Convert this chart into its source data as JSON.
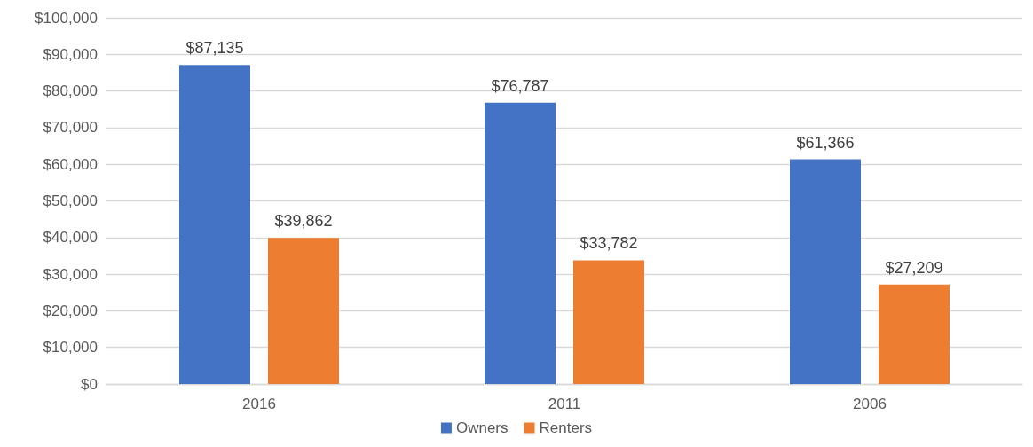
{
  "chart_data": {
    "type": "bar",
    "categories": [
      "2016",
      "2011",
      "2006"
    ],
    "series": [
      {
        "name": "Owners",
        "color": "#4472c4",
        "values": [
          87135,
          76787,
          61366
        ],
        "value_labels": [
          "$87,135",
          "$76,787",
          "$61,366"
        ]
      },
      {
        "name": "Renters",
        "color": "#ed7d31",
        "values": [
          39862,
          33782,
          27209
        ],
        "value_labels": [
          "$39,862",
          "$33,782",
          "$27,209"
        ]
      }
    ],
    "ylim": [
      0,
      100000
    ],
    "yticks": [
      {
        "value": 0,
        "label": "$0"
      },
      {
        "value": 10000,
        "label": "$10,000"
      },
      {
        "value": 20000,
        "label": "$20,000"
      },
      {
        "value": 30000,
        "label": "$30,000"
      },
      {
        "value": 40000,
        "label": "$40,000"
      },
      {
        "value": 50000,
        "label": "$50,000"
      },
      {
        "value": 60000,
        "label": "$60,000"
      },
      {
        "value": 70000,
        "label": "$70,000"
      },
      {
        "value": 80000,
        "label": "$80,000"
      },
      {
        "value": 90000,
        "label": "$90,000"
      },
      {
        "value": 100000,
        "label": "$100,000"
      }
    ],
    "grid": "y",
    "legend": "bottom"
  }
}
